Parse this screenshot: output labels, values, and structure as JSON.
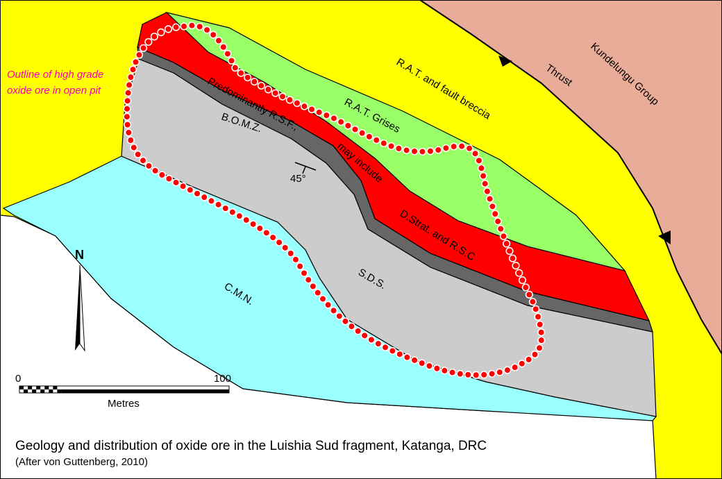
{
  "map": {
    "units": {
      "rat_breccia": "R.A.T. and fault breccia",
      "thrust": "Thrust",
      "kundelungu": "Kundelungu Group",
      "rat_grises": "R.A.T. Grises",
      "rsf": "Predominantly R.S.F.,",
      "may_include": "may include",
      "dstrat": "D.Strat. and R.S.C",
      "bomz": "B.O.M.Z.",
      "sds": "S.D.S.",
      "cmn": "C.M.N."
    },
    "dip": "45°",
    "outline_label": [
      "Outline of high grade",
      "oxide ore in open pit"
    ],
    "north": "N",
    "scale": {
      "start": "0",
      "end": "100",
      "unit": "Metres"
    },
    "caption": {
      "title": "Geology and distribution of oxide ore in the Luishia Sud fragment, Katanga, DRC",
      "source": "(After von Guttenberg, 2010)"
    }
  }
}
